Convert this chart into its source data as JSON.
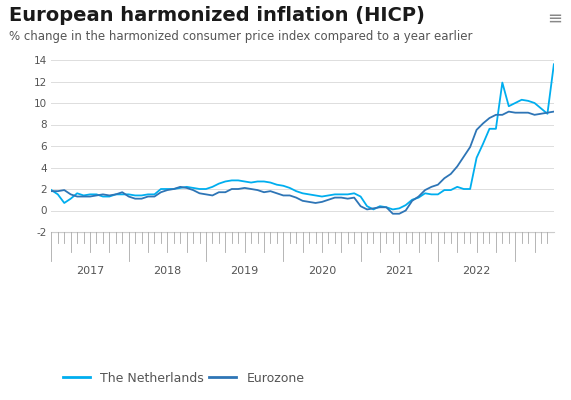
{
  "title": "European harmonized inflation (HICP)",
  "subtitle": "% change in the harmonized consumer price index compared to a year earlier",
  "netherlands_color": "#00AEEF",
  "eurozone_color": "#2E75B6",
  "background_color": "#FFFFFF",
  "ruler_area_color": "#EBEBEB",
  "ylim": [
    -2,
    14
  ],
  "yticks": [
    -2,
    0,
    2,
    4,
    6,
    8,
    10,
    12,
    14
  ],
  "title_fontsize": 14,
  "subtitle_fontsize": 8.5,
  "legend_fontsize": 9,
  "netherlands_y": [
    1.9,
    1.5,
    0.7,
    1.1,
    1.6,
    1.4,
    1.5,
    1.5,
    1.3,
    1.3,
    1.5,
    1.5,
    1.5,
    1.4,
    1.4,
    1.5,
    1.5,
    2.0,
    2.0,
    2.0,
    2.1,
    2.2,
    2.1,
    2.0,
    2.0,
    2.2,
    2.5,
    2.7,
    2.8,
    2.8,
    2.7,
    2.6,
    2.7,
    2.7,
    2.6,
    2.4,
    2.3,
    2.1,
    1.8,
    1.6,
    1.5,
    1.4,
    1.3,
    1.4,
    1.5,
    1.5,
    1.5,
    1.6,
    1.3,
    0.4,
    0.1,
    0.4,
    0.3,
    0.1,
    0.2,
    0.5,
    1.0,
    1.2,
    1.6,
    1.5,
    1.5,
    1.9,
    1.9,
    2.2,
    2.0,
    2.0,
    4.9,
    6.2,
    7.6,
    7.6,
    11.9,
    9.7,
    10.0,
    10.3,
    10.2,
    10.0,
    9.5,
    9.0,
    13.6
  ],
  "eurozone_y": [
    1.8,
    1.8,
    1.9,
    1.5,
    1.3,
    1.3,
    1.3,
    1.4,
    1.5,
    1.4,
    1.5,
    1.7,
    1.3,
    1.1,
    1.1,
    1.3,
    1.3,
    1.7,
    1.9,
    2.0,
    2.2,
    2.1,
    1.9,
    1.6,
    1.5,
    1.4,
    1.7,
    1.7,
    2.0,
    2.0,
    2.1,
    2.0,
    1.9,
    1.7,
    1.8,
    1.6,
    1.4,
    1.4,
    1.2,
    0.9,
    0.8,
    0.7,
    0.8,
    1.0,
    1.2,
    1.2,
    1.1,
    1.2,
    0.4,
    0.1,
    0.2,
    0.3,
    0.3,
    -0.3,
    -0.3,
    0.0,
    0.9,
    1.3,
    1.9,
    2.2,
    2.4,
    3.0,
    3.4,
    4.1,
    5.0,
    5.9,
    7.5,
    8.1,
    8.6,
    8.9,
    8.9,
    9.2,
    9.1,
    9.1,
    9.1,
    8.9,
    9.0,
    9.1,
    9.2
  ],
  "x_year_labels": [
    {
      "label": "2017",
      "x": 6
    },
    {
      "label": "2018",
      "x": 18
    },
    {
      "label": "2019",
      "x": 30
    },
    {
      "label": "2020",
      "x": 42
    },
    {
      "label": "2021",
      "x": 54
    },
    {
      "label": "2022",
      "x": 66
    }
  ],
  "num_points": 79,
  "grid_color": "#DDDDDD",
  "tick_color": "#AAAAAA",
  "label_color": "#555555",
  "spine_color": "#CCCCCC"
}
